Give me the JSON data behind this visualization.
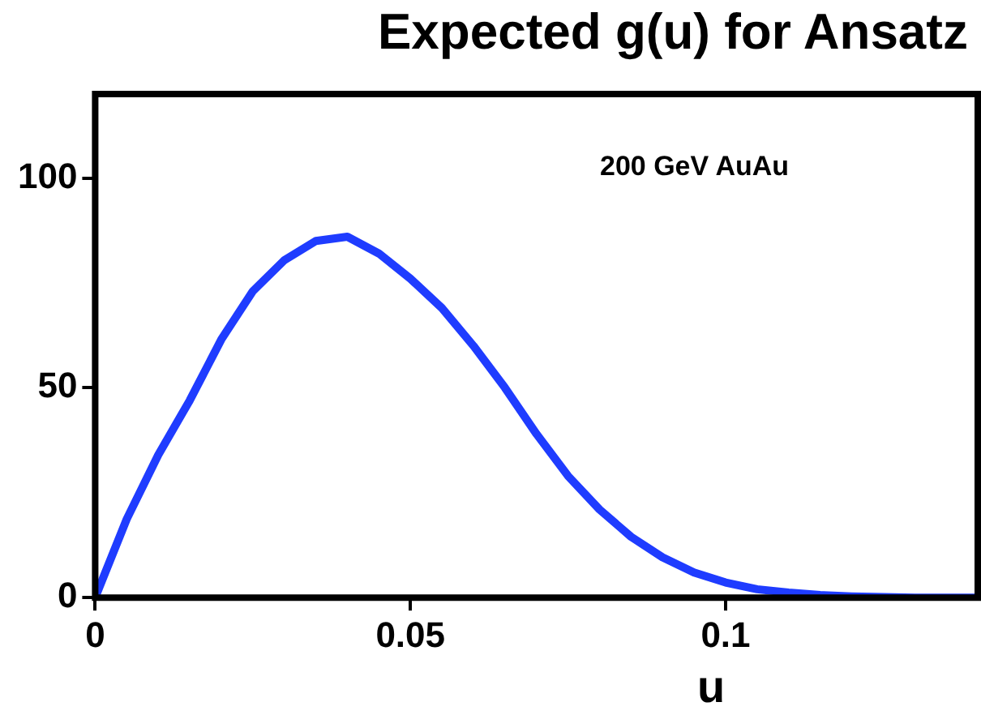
{
  "chart_data": {
    "type": "line",
    "title": "Expected g(u) for Ansatz",
    "xlabel": "u",
    "x": [
      0,
      0.005,
      0.01,
      0.015,
      0.02,
      0.025,
      0.03,
      0.035,
      0.04,
      0.045,
      0.05,
      0.055,
      0.06,
      0.065,
      0.07,
      0.075,
      0.08,
      0.085,
      0.09,
      0.095,
      0.1,
      0.105,
      0.11,
      0.115,
      0.12,
      0.13,
      0.14
    ],
    "series": [
      {
        "color": "#1f3cff",
        "values": [
          0,
          18.7,
          34,
          47,
          61.5,
          73,
          80.4,
          85,
          86,
          82,
          76,
          69,
          60,
          50,
          39,
          29,
          21,
          14.5,
          9.6,
          6,
          3.6,
          2,
          1.2,
          0.6,
          0.3,
          0,
          0
        ]
      }
    ],
    "xlim": [
      0,
      0.14
    ],
    "xticks": [
      0,
      0.05,
      0.1
    ],
    "ylim": [
      0,
      120
    ],
    "yticks": [
      0,
      50,
      100
    ],
    "annotations": [
      "200 GeV AuAu"
    ],
    "grid": false,
    "legend": false,
    "marker": "none",
    "line_style": "solid"
  }
}
